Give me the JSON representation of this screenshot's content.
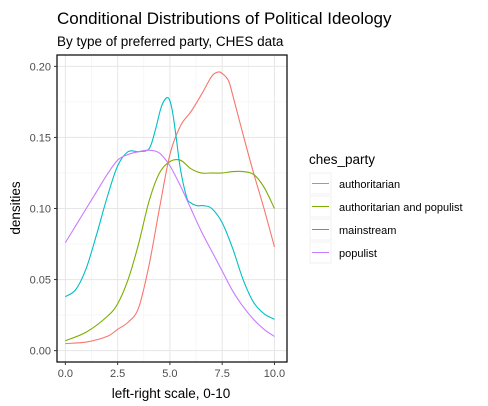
{
  "chart_data": {
    "type": "line",
    "title": "Conditional Distributions of Political Ideology",
    "subtitle": "By type of preferred party, CHES data",
    "xlabel": "left-right scale, 0-10",
    "ylabel": "densities",
    "xlim": [
      -0.4,
      10.6
    ],
    "ylim": [
      -0.008,
      0.208
    ],
    "x_ticks": [
      0,
      2.5,
      5,
      7.5,
      10
    ],
    "x_tick_labels": [
      "0.0",
      "2.5",
      "5.0",
      "7.5",
      "10.0"
    ],
    "y_ticks": [
      0,
      0.05,
      0.1,
      0.15,
      0.2
    ],
    "y_tick_labels": [
      "0.00",
      "0.05",
      "0.10",
      "0.15",
      "0.20"
    ],
    "grid": true,
    "legend": {
      "title": "ches_party",
      "placement": "right"
    },
    "series": [
      {
        "name": "authoritarian",
        "color": "#F8766D",
        "x": [
          0,
          1,
          2,
          2.5,
          3,
          3.5,
          4,
          4.5,
          5,
          5.5,
          6,
          6.5,
          7,
          7.3,
          7.5,
          7.8,
          8,
          8.5,
          9,
          9.5,
          10
        ],
        "y": [
          0.005,
          0.006,
          0.01,
          0.015,
          0.02,
          0.03,
          0.06,
          0.1,
          0.138,
          0.158,
          0.168,
          0.18,
          0.193,
          0.196,
          0.195,
          0.19,
          0.18,
          0.152,
          0.125,
          0.1,
          0.073
        ]
      },
      {
        "name": "authoritarian and populist",
        "color": "#7CAE00",
        "x": [
          0,
          1,
          2,
          2.5,
          3,
          3.5,
          4,
          4.5,
          5,
          5.5,
          6,
          6.5,
          7,
          7.5,
          8,
          8.5,
          9,
          9.5,
          10
        ],
        "y": [
          0.007,
          0.013,
          0.024,
          0.033,
          0.05,
          0.075,
          0.105,
          0.125,
          0.133,
          0.134,
          0.128,
          0.125,
          0.125,
          0.125,
          0.126,
          0.126,
          0.124,
          0.115,
          0.1
        ]
      },
      {
        "name": "mainstream",
        "color": "#00BFC4",
        "x": [
          0,
          0.5,
          1,
          1.5,
          2,
          2.5,
          3,
          3.5,
          4,
          4.3,
          4.6,
          4.9,
          5.1,
          5.3,
          5.5,
          5.8,
          6,
          6.3,
          6.6,
          7,
          7.5,
          8,
          8.5,
          9,
          9.5,
          10
        ],
        "y": [
          0.038,
          0.043,
          0.058,
          0.082,
          0.108,
          0.13,
          0.14,
          0.14,
          0.142,
          0.155,
          0.172,
          0.178,
          0.17,
          0.15,
          0.128,
          0.108,
          0.104,
          0.102,
          0.102,
          0.1,
          0.09,
          0.072,
          0.05,
          0.034,
          0.026,
          0.022
        ]
      },
      {
        "name": "populist",
        "color": "#C77CFF",
        "x": [
          0,
          0.5,
          1,
          1.5,
          2,
          2.5,
          3,
          3.5,
          4,
          4.5,
          5,
          5.5,
          6,
          6.5,
          7,
          7.5,
          8,
          8.5,
          9,
          9.5,
          10
        ],
        "y": [
          0.076,
          0.088,
          0.1,
          0.112,
          0.124,
          0.134,
          0.138,
          0.14,
          0.141,
          0.139,
          0.13,
          0.116,
          0.1,
          0.084,
          0.07,
          0.056,
          0.042,
          0.031,
          0.022,
          0.015,
          0.01
        ]
      }
    ]
  }
}
